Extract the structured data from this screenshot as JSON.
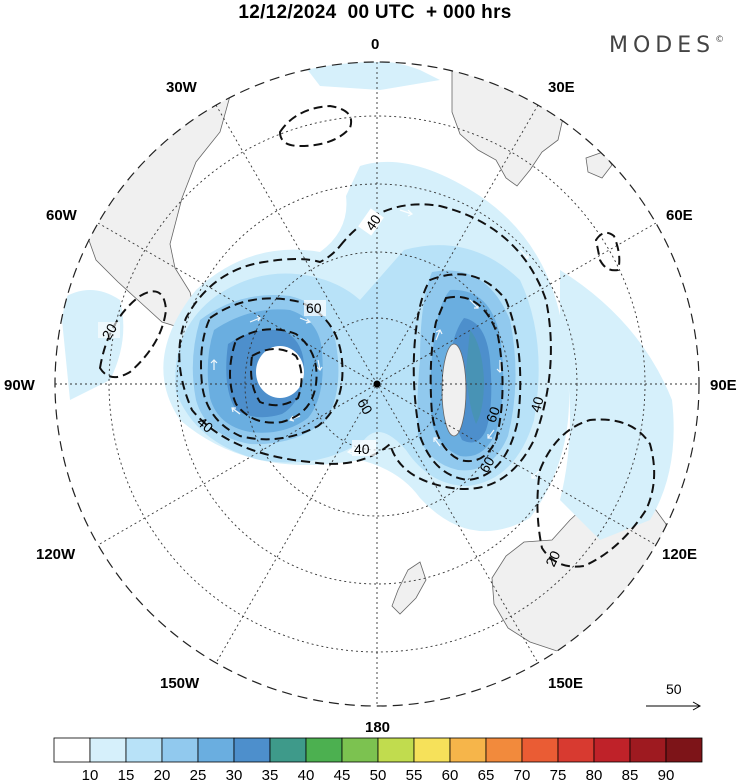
{
  "title": "12/12/2024  00 UTC  + 000 hrs",
  "brand": "MODES",
  "brand_mark": "©",
  "projection": "south-polar-stereographic",
  "longitude_labels": [
    "0",
    "30E",
    "60E",
    "90E",
    "120E",
    "150E",
    "180",
    "150W",
    "120W",
    "90W",
    "60W",
    "30W"
  ],
  "contour_labels": [
    "40",
    "60",
    "20",
    "60",
    "40",
    "60",
    "60",
    "40",
    "40",
    "20"
  ],
  "vector_reference": {
    "value": "50"
  },
  "colorbar": {
    "ticks": [
      "10",
      "15",
      "20",
      "25",
      "30",
      "35",
      "40",
      "45",
      "50",
      "55",
      "60",
      "65",
      "70",
      "75",
      "80",
      "85",
      "90"
    ],
    "colors": [
      "#ffffff",
      "#d6f0fb",
      "#b8e2f8",
      "#91c9ee",
      "#6aaee0",
      "#4d8fcc",
      "#3e9a8a",
      "#4cb050",
      "#7cc250",
      "#c1dc4e",
      "#f6e15a",
      "#f6b54a",
      "#f28a3c",
      "#ea5c34",
      "#d83a30",
      "#bf2229",
      "#9e1a20",
      "#7d1418"
    ]
  }
}
